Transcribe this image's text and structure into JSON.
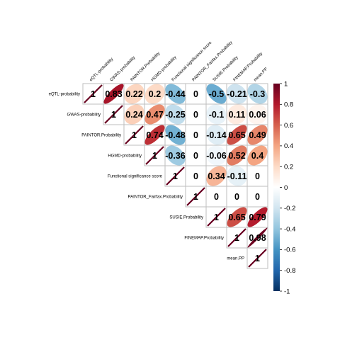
{
  "chart_data": {
    "type": "heatmap",
    "style": "correlation matrix, upper triangle, ellipse glyphs with coefficient labels",
    "variables": [
      "eQTL-probability",
      "GWAS-probability",
      "PAINTOR.Probability",
      "HGMD-probability",
      "Functional significance score",
      "PAINTOR_Fairfax.Probability",
      "SUSIE.Probability",
      "FINEMAP.Probability",
      "mean.PP"
    ],
    "matrix": [
      [
        1,
        0.83,
        0.22,
        0.2,
        -0.44,
        0,
        -0.5,
        -0.21,
        -0.3
      ],
      [
        null,
        1,
        0.24,
        0.47,
        -0.25,
        0,
        -0.1,
        0.11,
        0.06
      ],
      [
        null,
        null,
        1,
        0.74,
        -0.48,
        0,
        -0.14,
        0.65,
        0.49
      ],
      [
        null,
        null,
        null,
        1,
        -0.36,
        0,
        -0.06,
        0.52,
        0.4
      ],
      [
        null,
        null,
        null,
        null,
        1,
        0,
        0.34,
        -0.11,
        0
      ],
      [
        null,
        null,
        null,
        null,
        null,
        1,
        0,
        0,
        0
      ],
      [
        null,
        null,
        null,
        null,
        null,
        null,
        1,
        0.65,
        0.79
      ],
      [
        null,
        null,
        null,
        null,
        null,
        null,
        null,
        1,
        0.98
      ],
      [
        null,
        null,
        null,
        null,
        null,
        null,
        null,
        null,
        1
      ]
    ],
    "colorbar": {
      "range": [
        -1,
        1
      ],
      "ticks": [
        "1",
        "0.8",
        "0.6",
        "0.4",
        "0.2",
        "0",
        "-0.2",
        "-0.4",
        "-0.6",
        "-0.8",
        "-1"
      ],
      "colors": [
        "#67001F",
        "#B2182B",
        "#D6604D",
        "#F4A582",
        "#FDDBC7",
        "#FFFFFF",
        "#D1E5F0",
        "#92C5DE",
        "#4393C3",
        "#2166AC",
        "#053061"
      ]
    }
  }
}
